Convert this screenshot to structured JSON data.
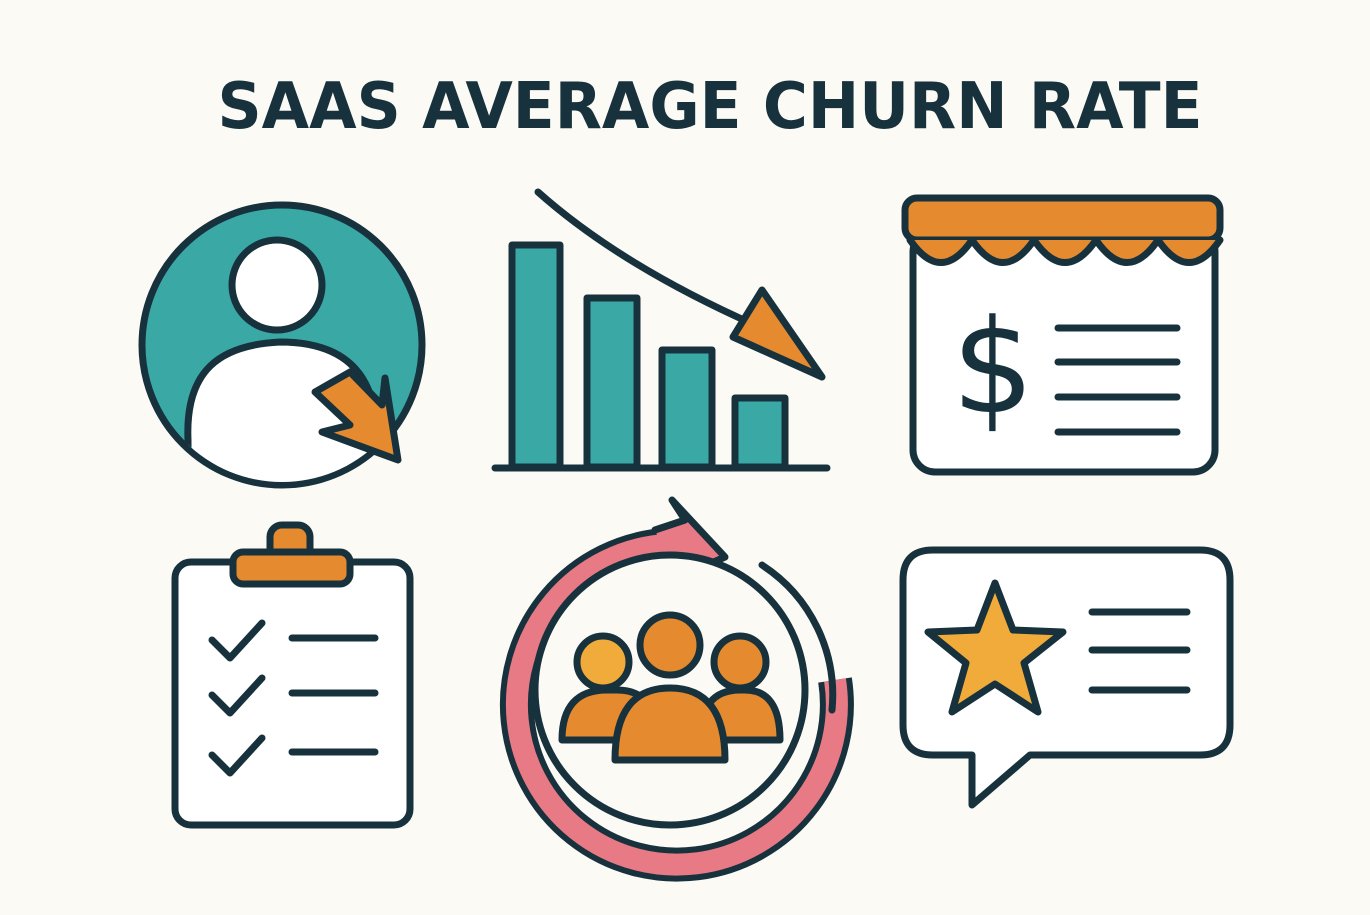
{
  "header": {
    "title": "SAAS AVERAGE CHURN RATE"
  },
  "store_icon": {
    "symbol": "$"
  }
}
